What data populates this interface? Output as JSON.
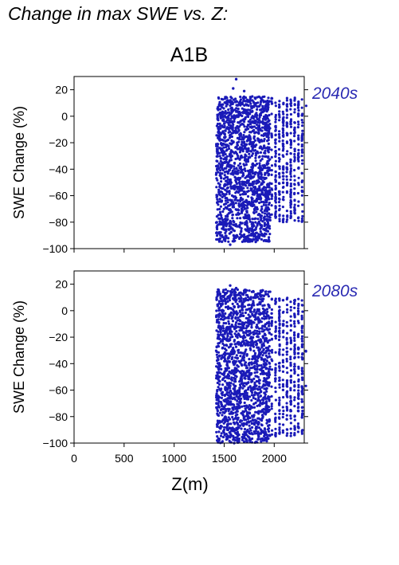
{
  "heading": "Change in max SWE vs. Z:",
  "scenario": "A1B",
  "colors": {
    "points": "#1a1ab8",
    "period_text": "#2b2bb3",
    "axis": "#000000"
  },
  "chart_data": [
    {
      "type": "scatter",
      "title": "",
      "period_label": "2040s",
      "xlabel": "",
      "ylabel": "SWE Change (%)",
      "xlim": [
        0,
        2300
      ],
      "ylim": [
        -100,
        30
      ],
      "x_ticks": [
        0,
        500,
        1000,
        1500,
        2000
      ],
      "x_tick_labels": [],
      "y_ticks": [
        20,
        0,
        -20,
        -40,
        -60,
        -80,
        -100
      ],
      "y_tick_labels": [
        "20",
        "0",
        "−20",
        "−40",
        "−60",
        "−80",
        "−100"
      ],
      "grid": false,
      "series": [
        {
          "points_summary": "dense cloud of station points between Z ≈ 1420–2290 m",
          "bands": [
            {
              "z": [
                1420,
                1960
              ],
              "change": [
                -95,
                15
              ],
              "density": "dense"
            },
            {
              "z": [
                1980,
                2300
              ],
              "change": [
                -80,
                14
              ],
              "density": "sparse columns"
            }
          ],
          "extreme_points": [
            [
              1620,
              28
            ],
            [
              1590,
              21
            ],
            [
              1700,
              19
            ],
            [
              1440,
              -93
            ],
            [
              1560,
              -97
            ]
          ]
        }
      ]
    },
    {
      "type": "scatter",
      "title": "",
      "period_label": "2080s",
      "xlabel": "Z(m)",
      "ylabel": "SWE Change (%)",
      "xlim": [
        0,
        2300
      ],
      "ylim": [
        -100,
        30
      ],
      "x_ticks": [
        0,
        500,
        1000,
        1500,
        2000
      ],
      "x_tick_labels": [
        "0",
        "500",
        "1000",
        "1500",
        "2000"
      ],
      "y_ticks": [
        20,
        0,
        -20,
        -40,
        -60,
        -80,
        -100
      ],
      "y_tick_labels": [
        "20",
        "0",
        "−20",
        "−40",
        "−60",
        "−80",
        "−100"
      ],
      "grid": false,
      "series": [
        {
          "points_summary": "dense cloud of station points between Z ≈ 1420–2290 m",
          "bands": [
            {
              "z": [
                1420,
                1960
              ],
              "change": [
                -100,
                16
              ],
              "density": "dense"
            },
            {
              "z": [
                1980,
                2300
              ],
              "change": [
                -95,
                10
              ],
              "density": "sparse columns"
            }
          ],
          "extreme_points": [
            [
              1560,
              19
            ],
            [
              1620,
              17
            ],
            [
              1700,
              15
            ],
            [
              1450,
              -98
            ],
            [
              1600,
              -100
            ]
          ]
        }
      ]
    }
  ]
}
